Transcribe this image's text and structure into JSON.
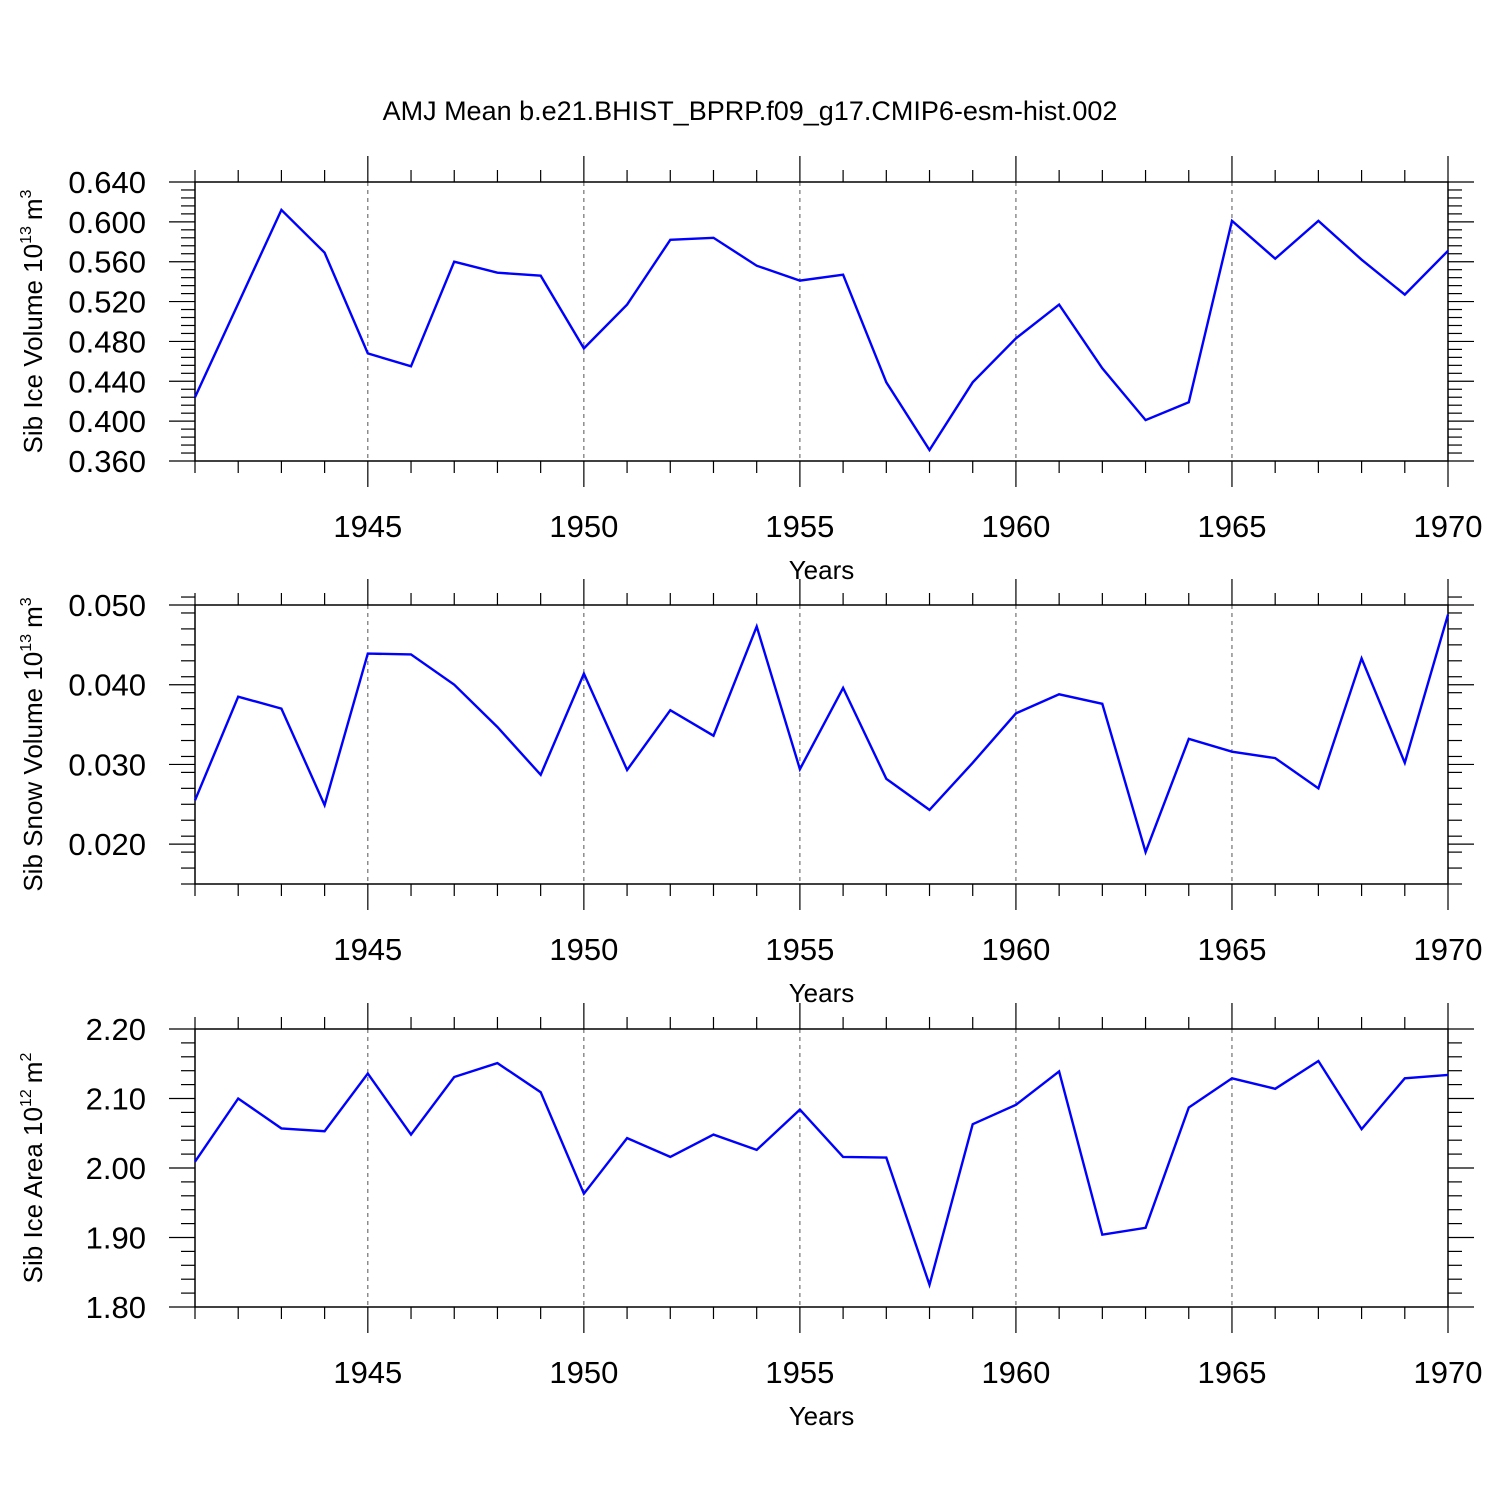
{
  "title": "AMJ Mean b.e21.BHIST_BPRP.f09_g17.CMIP6-esm-hist.002",
  "chart_data": [
    {
      "type": "line",
      "ylabel": "Sib Ice Volume 10",
      "ylabel_exp": "13",
      "ylabel_unit": "m",
      "ylabel_unit_exp": "3",
      "xlabel": "Years",
      "xlim": [
        1941,
        1970
      ],
      "ylim": [
        0.36,
        0.64
      ],
      "yticks": [
        0.36,
        0.4,
        0.44,
        0.48,
        0.52,
        0.56,
        0.6,
        0.64
      ],
      "ytick_labels": [
        "0.360",
        "0.400",
        "0.440",
        "0.480",
        "0.520",
        "0.560",
        "0.600",
        "0.640"
      ],
      "ytick_minor_step": 0.008,
      "xticks": [
        1945,
        1950,
        1955,
        1960,
        1965,
        1970
      ],
      "xtick_labels": [
        "1945",
        "1950",
        "1955",
        "1960",
        "1965",
        "1970"
      ],
      "grid": "vertical-dashed",
      "color": "#0000ff",
      "x": [
        1941,
        1942,
        1943,
        1944,
        1945,
        1946,
        1947,
        1948,
        1949,
        1950,
        1951,
        1952,
        1953,
        1954,
        1955,
        1956,
        1957,
        1958,
        1959,
        1960,
        1961,
        1962,
        1963,
        1964,
        1965,
        1966,
        1967,
        1968,
        1969,
        1970
      ],
      "values": [
        0.424,
        0.518,
        0.612,
        0.569,
        0.468,
        0.455,
        0.56,
        0.549,
        0.546,
        0.473,
        0.517,
        0.582,
        0.584,
        0.556,
        0.541,
        0.547,
        0.439,
        0.371,
        0.439,
        0.483,
        0.517,
        0.453,
        0.401,
        0.419,
        0.601,
        0.563,
        0.601,
        0.562,
        0.527,
        0.571
      ]
    },
    {
      "type": "line",
      "ylabel": "Sib Snow Volume 10",
      "ylabel_exp": "13",
      "ylabel_unit": "m",
      "ylabel_unit_exp": "3",
      "xlabel": "Years",
      "xlim": [
        1941,
        1970
      ],
      "ylim": [
        0.015,
        0.05
      ],
      "yticks": [
        0.02,
        0.03,
        0.04,
        0.05
      ],
      "ytick_labels": [
        "0.020",
        "0.030",
        "0.040",
        "0.050"
      ],
      "ytick_minor_step": 0.002,
      "xticks": [
        1945,
        1950,
        1955,
        1960,
        1965,
        1970
      ],
      "xtick_labels": [
        "1945",
        "1950",
        "1955",
        "1960",
        "1965",
        "1970"
      ],
      "grid": "vertical-dashed",
      "color": "#0000ff",
      "x": [
        1941,
        1942,
        1943,
        1944,
        1945,
        1946,
        1947,
        1948,
        1949,
        1950,
        1951,
        1952,
        1953,
        1954,
        1955,
        1956,
        1957,
        1958,
        1959,
        1960,
        1961,
        1962,
        1963,
        1964,
        1965,
        1966,
        1967,
        1968,
        1969,
        1970
      ],
      "values": [
        0.0255,
        0.0385,
        0.037,
        0.0249,
        0.0439,
        0.0438,
        0.04,
        0.0347,
        0.0287,
        0.0414,
        0.0293,
        0.0368,
        0.0336,
        0.0473,
        0.0294,
        0.0396,
        0.0282,
        0.0243,
        0.0302,
        0.0364,
        0.0388,
        0.0376,
        0.019,
        0.0332,
        0.0316,
        0.0308,
        0.027,
        0.0433,
        0.0302,
        0.0488
      ]
    },
    {
      "type": "line",
      "ylabel": "Sib Ice Area 10",
      "ylabel_exp": "12",
      "ylabel_unit": "m",
      "ylabel_unit_exp": "2",
      "xlabel": "Years",
      "xlim": [
        1941,
        1970
      ],
      "ylim": [
        1.8,
        2.2
      ],
      "yticks": [
        1.8,
        1.9,
        2.0,
        2.1,
        2.2
      ],
      "ytick_labels": [
        "1.80",
        "1.90",
        "2.00",
        "2.10",
        "2.20"
      ],
      "ytick_minor_step": 0.02,
      "xticks": [
        1945,
        1950,
        1955,
        1960,
        1965,
        1970
      ],
      "xtick_labels": [
        "1945",
        "1950",
        "1955",
        "1960",
        "1965",
        "1970"
      ],
      "grid": "vertical-dashed",
      "color": "#0000ff",
      "x": [
        1941,
        1942,
        1943,
        1944,
        1945,
        1946,
        1947,
        1948,
        1949,
        1950,
        1951,
        1952,
        1953,
        1954,
        1955,
        1956,
        1957,
        1958,
        1959,
        1960,
        1961,
        1962,
        1963,
        1964,
        1965,
        1966,
        1967,
        1968,
        1969,
        1970
      ],
      "values": [
        2.009,
        2.1,
        2.057,
        2.053,
        2.136,
        2.048,
        2.131,
        2.151,
        2.109,
        1.963,
        2.043,
        2.016,
        2.048,
        2.026,
        2.084,
        2.016,
        2.015,
        1.832,
        2.063,
        2.091,
        2.139,
        1.904,
        1.914,
        2.087,
        2.129,
        2.114,
        2.154,
        2.056,
        2.129,
        2.134
      ]
    }
  ]
}
